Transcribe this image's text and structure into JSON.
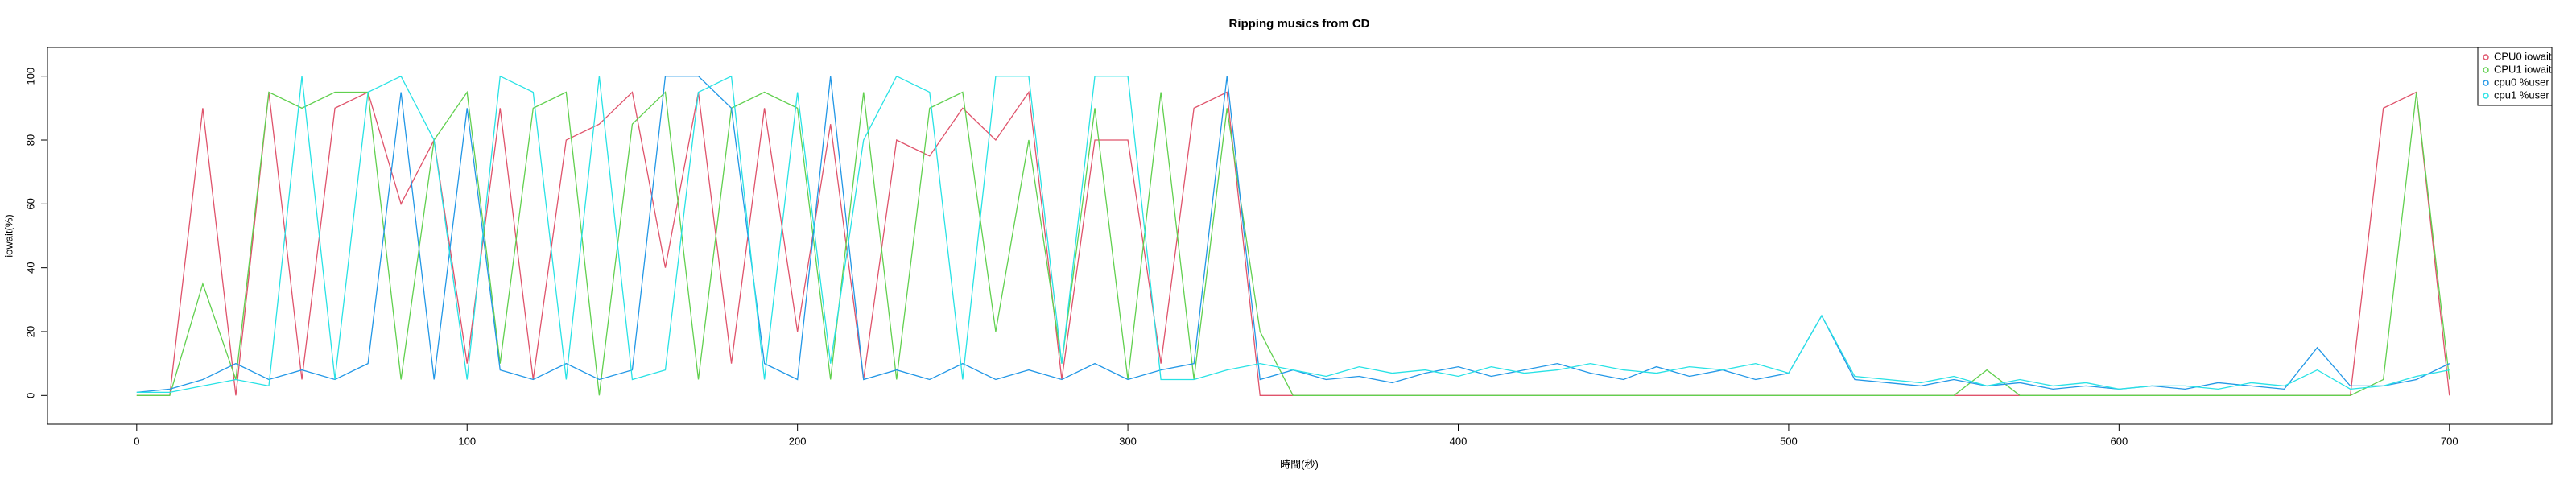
{
  "chart_data": {
    "type": "line",
    "title": "Ripping musics from CD",
    "x_label": "時間(秒)",
    "y_label": "iowait(%)",
    "x": [
      0,
      10,
      20,
      30,
      40,
      50,
      60,
      70,
      80,
      90,
      100,
      110,
      120,
      130,
      140,
      150,
      160,
      170,
      180,
      190,
      200,
      210,
      220,
      230,
      240,
      250,
      260,
      270,
      280,
      290,
      300,
      310,
      320,
      330,
      340,
      350,
      360,
      370,
      380,
      390,
      400,
      410,
      420,
      430,
      440,
      450,
      460,
      470,
      480,
      490,
      500,
      510,
      520,
      530,
      540,
      550,
      560,
      570,
      580,
      590,
      600,
      610,
      620,
      630,
      640,
      650,
      660,
      670,
      680,
      690,
      700
    ],
    "series": [
      {
        "name": "CPU0 iowait",
        "color": "#DF536B",
        "values": [
          0,
          0,
          90,
          0,
          95,
          5,
          90,
          95,
          60,
          80,
          10,
          90,
          5,
          80,
          85,
          95,
          40,
          95,
          10,
          90,
          20,
          85,
          5,
          80,
          75,
          90,
          80,
          95,
          5,
          80,
          80,
          10,
          90,
          95,
          0,
          0,
          0,
          0,
          0,
          0,
          0,
          0,
          0,
          0,
          0,
          0,
          0,
          0,
          0,
          0,
          0,
          0,
          0,
          0,
          0,
          0,
          0,
          0,
          0,
          0,
          0,
          0,
          0,
          0,
          0,
          0,
          0,
          0,
          90,
          95,
          0
        ]
      },
      {
        "name": "CPU1 iowait",
        "color": "#61D04F",
        "values": [
          0,
          0,
          35,
          5,
          95,
          90,
          95,
          95,
          5,
          80,
          95,
          10,
          90,
          95,
          0,
          85,
          95,
          5,
          90,
          95,
          90,
          5,
          95,
          5,
          90,
          95,
          20,
          80,
          10,
          90,
          5,
          95,
          5,
          90,
          20,
          0,
          0,
          0,
          0,
          0,
          0,
          0,
          0,
          0,
          0,
          0,
          0,
          0,
          0,
          0,
          0,
          0,
          0,
          0,
          0,
          0,
          8,
          0,
          0,
          0,
          0,
          0,
          0,
          0,
          0,
          0,
          0,
          0,
          5,
          95,
          5
        ]
      },
      {
        "name": "cpu0 %user",
        "color": "#2297E6",
        "values": [
          1,
          2,
          5,
          10,
          5,
          8,
          5,
          10,
          95,
          5,
          90,
          8,
          5,
          10,
          5,
          8,
          100,
          100,
          90,
          10,
          5,
          100,
          5,
          8,
          5,
          10,
          5,
          8,
          5,
          10,
          5,
          8,
          10,
          100,
          5,
          8,
          5,
          6,
          4,
          7,
          9,
          6,
          8,
          10,
          7,
          5,
          9,
          6,
          8,
          5,
          7,
          25,
          5,
          4,
          3,
          5,
          3,
          4,
          2,
          3,
          2,
          3,
          2,
          4,
          3,
          2,
          15,
          3,
          3,
          5,
          10
        ]
      },
      {
        "name": "cpu1 %user",
        "color": "#28E2E5",
        "values": [
          1,
          1,
          3,
          5,
          3,
          100,
          5,
          95,
          100,
          80,
          5,
          100,
          95,
          5,
          100,
          5,
          8,
          95,
          100,
          5,
          95,
          10,
          80,
          100,
          95,
          5,
          100,
          100,
          10,
          100,
          100,
          5,
          5,
          8,
          10,
          8,
          6,
          9,
          7,
          8,
          6,
          9,
          7,
          8,
          10,
          8,
          7,
          9,
          8,
          10,
          7,
          25,
          6,
          5,
          4,
          6,
          3,
          5,
          3,
          4,
          2,
          3,
          3,
          2,
          4,
          3,
          8,
          2,
          3,
          6,
          8
        ]
      }
    ],
    "xlim": [
      -27,
      731
    ],
    "ylim": [
      -9,
      109
    ],
    "xticks": [
      0,
      100,
      200,
      300,
      400,
      500,
      600,
      700
    ],
    "yticks": [
      0,
      20,
      40,
      60,
      80,
      100
    ],
    "legend": "top-right"
  }
}
